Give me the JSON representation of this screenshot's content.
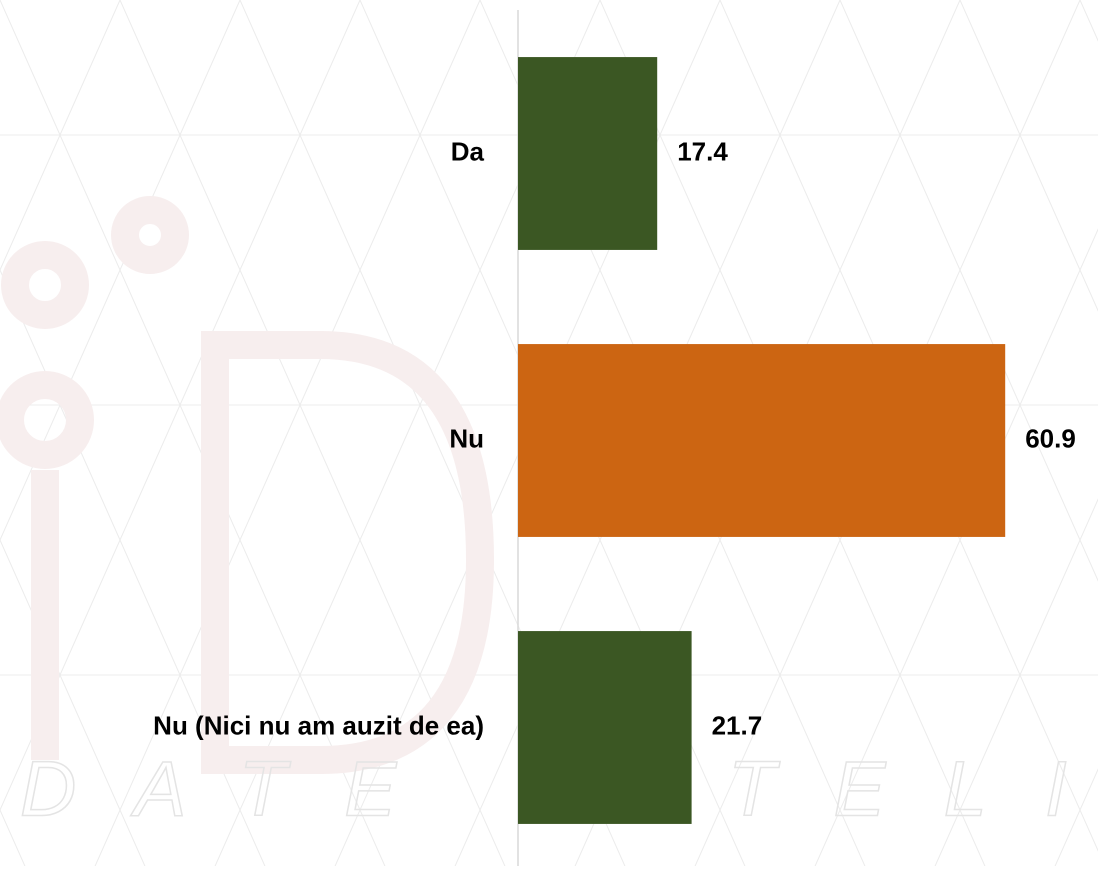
{
  "chart_data": {
    "type": "hbar",
    "categories": [
      "Da",
      "Nu",
      "Nu (Nici nu am auzit de ea)"
    ],
    "values": [
      17.4,
      60.9,
      21.7
    ],
    "colors": [
      "#3b5723",
      "#cc6512",
      "#3b5723"
    ],
    "xlim": [
      0,
      72.5
    ],
    "watermark": "DATE INTELIGENTE"
  }
}
